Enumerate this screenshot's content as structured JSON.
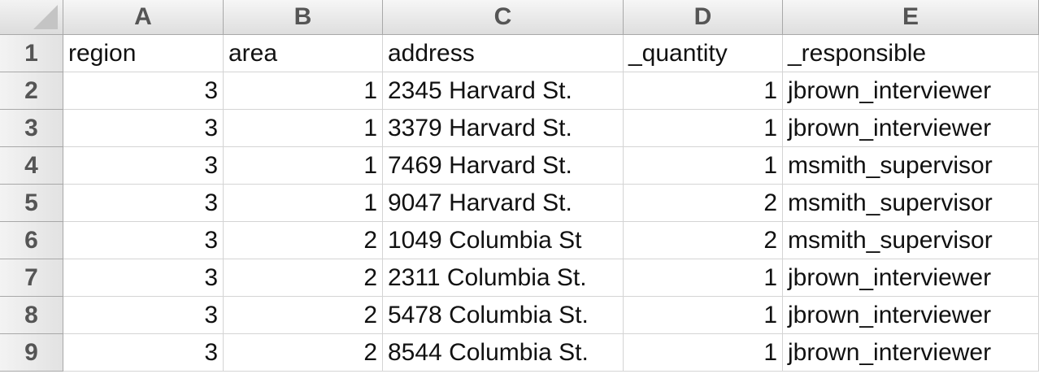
{
  "columns": [
    "A",
    "B",
    "C",
    "D",
    "E"
  ],
  "row_numbers": [
    "1",
    "2",
    "3",
    "4",
    "5",
    "6",
    "7",
    "8",
    "9"
  ],
  "header_row": [
    "region",
    "area",
    "address",
    "_quantity",
    "_responsible"
  ],
  "rows": [
    [
      "3",
      "1",
      "2345 Harvard St.",
      "1",
      "jbrown_interviewer"
    ],
    [
      "3",
      "1",
      "3379 Harvard St.",
      "1",
      "jbrown_interviewer"
    ],
    [
      "3",
      "1",
      "7469 Harvard St.",
      "1",
      "msmith_supervisor"
    ],
    [
      "3",
      "1",
      "9047 Harvard St.",
      "2",
      "msmith_supervisor"
    ],
    [
      "3",
      "2",
      "1049 Columbia St",
      "2",
      "msmith_supervisor"
    ],
    [
      "3",
      "2",
      "2311 Columbia St.",
      "1",
      "jbrown_interviewer"
    ],
    [
      "3",
      "2",
      "5478 Columbia St.",
      "1",
      "jbrown_interviewer"
    ],
    [
      "3",
      "2",
      "8544 Columbia St.",
      "1",
      "jbrown_interviewer"
    ]
  ]
}
